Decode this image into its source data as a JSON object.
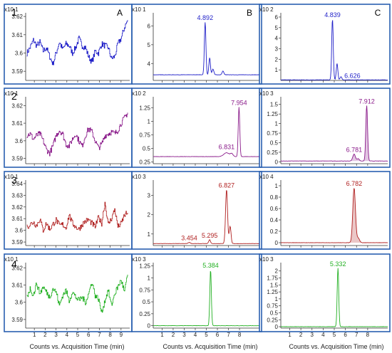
{
  "columns": {
    "A": {
      "label": "A",
      "xlabel": "Counts vs. Acquisition Time (min)",
      "xlim": [
        0.2,
        9.8
      ],
      "xticks": [
        "1",
        "2",
        "3",
        "4",
        "5",
        "6",
        "7",
        "8",
        "9"
      ]
    },
    "B": {
      "label": "B",
      "xlabel": "Counts vs. Acquisition Time (min)",
      "xlim": [
        0.2,
        9.8
      ],
      "xticks": [
        "1",
        "2",
        "3",
        "4",
        "5",
        "6",
        "7",
        "8"
      ]
    },
    "C": {
      "label": "C",
      "xlabel": "Counts vs. Acquisition Time (min)",
      "xlim": [
        0.2,
        9.8
      ],
      "xticks": [
        "1",
        "2",
        "3",
        "4",
        "5",
        "6",
        "7",
        "8"
      ]
    }
  },
  "rows": [
    {
      "label": "1",
      "color": "#1f1fc8"
    },
    {
      "label": "2",
      "color": "#8a1a8a"
    },
    {
      "label": "3",
      "color": "#b02020"
    },
    {
      "label": "4",
      "color": "#22b022"
    }
  ],
  "chart_data": [
    {
      "id": "A1",
      "type": "line",
      "exponent": "x10 1",
      "ylim": [
        3.585,
        3.622
      ],
      "yticks": [
        3.59,
        3.6,
        3.61,
        3.62
      ],
      "ytick_labels": [
        "3.59",
        "3.6",
        "3.61",
        "3.62"
      ],
      "series": [
        {
          "x": [
            0.3,
            0.6,
            0.9,
            1.2,
            1.5,
            1.8,
            2.1,
            2.4,
            2.7,
            3.0,
            3.3,
            3.6,
            3.9,
            4.2,
            4.5,
            4.8,
            5.1,
            5.4,
            5.7,
            6.0,
            6.3,
            6.6,
            6.9,
            7.2,
            7.5,
            7.8,
            8.1,
            8.4,
            8.7,
            9.0,
            9.3,
            9.6
          ],
          "y": [
            3.6,
            3.603,
            3.607,
            3.604,
            3.606,
            3.601,
            3.603,
            3.598,
            3.594,
            3.6,
            3.606,
            3.602,
            3.605,
            3.604,
            3.6,
            3.603,
            3.608,
            3.604,
            3.603,
            3.598,
            3.595,
            3.601,
            3.6,
            3.605,
            3.604,
            3.603,
            3.597,
            3.598,
            3.605,
            3.608,
            3.614,
            3.618
          ]
        }
      ]
    },
    {
      "id": "B1",
      "type": "line",
      "fill": false,
      "exponent": "x10 1",
      "ylim": [
        3.1,
        6.7
      ],
      "yticks": [
        4,
        5,
        6
      ],
      "ytick_labels": [
        "4",
        "5",
        "6"
      ],
      "baseline": 3.4,
      "peaks": [
        {
          "x": 4.892,
          "h": 6.2,
          "w": 0.07
        },
        {
          "x": 5.3,
          "h": 4.3,
          "w": 0.07
        },
        {
          "x": 5.6,
          "h": 3.7,
          "w": 0.08
        },
        {
          "x": 6.5,
          "h": 3.6,
          "w": 0.08
        }
      ],
      "annotations": [
        {
          "x": 4.892,
          "y": 6.2,
          "text": "4.892"
        }
      ]
    },
    {
      "id": "C1",
      "type": "line",
      "fill": false,
      "exponent": "x10 2",
      "ylim": [
        0,
        6.4
      ],
      "yticks": [
        1,
        2,
        3,
        4,
        5,
        6
      ],
      "ytick_labels": [
        "1",
        "2",
        "3",
        "4",
        "5",
        "6"
      ],
      "baseline": 0.05,
      "peaks": [
        {
          "x": 4.839,
          "h": 5.8,
          "w": 0.07
        },
        {
          "x": 5.25,
          "h": 1.6,
          "w": 0.07
        },
        {
          "x": 5.6,
          "h": 0.35,
          "w": 0.08
        }
      ],
      "annotations": [
        {
          "x": 4.839,
          "y": 5.8,
          "text": "4.839"
        },
        {
          "x": 6.626,
          "y": 0.05,
          "text": "6.626"
        }
      ]
    },
    {
      "id": "A2",
      "type": "line",
      "exponent": "x10 1",
      "ylim": [
        3.587,
        3.625
      ],
      "yticks": [
        3.59,
        3.6,
        3.61,
        3.62
      ],
      "ytick_labels": [
        "3.59",
        "3.6",
        "3.61",
        "3.62"
      ],
      "series": [
        {
          "x": [
            0.3,
            0.6,
            0.9,
            1.2,
            1.5,
            1.8,
            2.1,
            2.4,
            2.7,
            3.0,
            3.3,
            3.6,
            3.9,
            4.2,
            4.5,
            4.8,
            5.1,
            5.4,
            5.7,
            6.0,
            6.3,
            6.6,
            6.9,
            7.2,
            7.5,
            7.8,
            8.1,
            8.4,
            8.7,
            9.0,
            9.3,
            9.6
          ],
          "y": [
            3.603,
            3.604,
            3.601,
            3.603,
            3.604,
            3.6,
            3.595,
            3.593,
            3.597,
            3.603,
            3.606,
            3.604,
            3.598,
            3.597,
            3.601,
            3.604,
            3.6,
            3.597,
            3.603,
            3.607,
            3.605,
            3.6,
            3.596,
            3.598,
            3.603,
            3.604,
            3.605,
            3.604,
            3.606,
            3.61,
            3.613,
            3.616
          ]
        }
      ]
    },
    {
      "id": "B2",
      "type": "line",
      "fill": false,
      "exponent": "x10 2",
      "ylim": [
        0.22,
        1.45
      ],
      "yticks": [
        0.25,
        0.5,
        0.75,
        1,
        1.25
      ],
      "ytick_labels": [
        "0.25",
        "0.5",
        "0.75",
        "1",
        "1.25"
      ],
      "baseline": 0.35,
      "peaks": [
        {
          "x": 6.831,
          "h": 0.42,
          "w": 0.25
        },
        {
          "x": 7.3,
          "h": 0.4,
          "w": 0.12
        },
        {
          "x": 7.954,
          "h": 1.26,
          "w": 0.07
        }
      ],
      "annotations": [
        {
          "x": 6.831,
          "y": 0.45,
          "text": "6.831"
        },
        {
          "x": 7.954,
          "y": 1.26,
          "text": "7.954"
        }
      ]
    },
    {
      "id": "C2",
      "type": "line",
      "fill": true,
      "exponent": "x10 3",
      "ylim": [
        -0.05,
        1.7
      ],
      "yticks": [
        0,
        0.25,
        0.5,
        0.75,
        1,
        1.25,
        1.5
      ],
      "ytick_labels": [
        "0",
        "0.25",
        "0.5",
        "0.75",
        "1",
        "1.25",
        "1.5"
      ],
      "baseline": 0.02,
      "peaks": [
        {
          "x": 6.781,
          "h": 0.2,
          "w": 0.12
        },
        {
          "x": 7.15,
          "h": 0.08,
          "w": 0.1
        },
        {
          "x": 7.912,
          "h": 1.47,
          "w": 0.08
        }
      ],
      "annotations": [
        {
          "x": 6.781,
          "y": 0.2,
          "text": "6.781"
        },
        {
          "x": 7.912,
          "y": 1.47,
          "text": "7.912"
        }
      ]
    },
    {
      "id": "A3",
      "type": "line",
      "exponent": "x10 1",
      "ylim": [
        3.587,
        3.643
      ],
      "yticks": [
        3.59,
        3.6,
        3.61,
        3.62,
        3.63,
        3.64
      ],
      "ytick_labels": [
        "3.59",
        "3.6",
        "3.61",
        "3.62",
        "3.63",
        "3.64"
      ],
      "series": [
        {
          "x": [
            0.3,
            0.6,
            0.9,
            1.2,
            1.5,
            1.8,
            2.1,
            2.4,
            2.7,
            3.0,
            3.3,
            3.6,
            3.9,
            4.2,
            4.5,
            4.8,
            5.1,
            5.4,
            5.7,
            6.0,
            6.3,
            6.6,
            6.9,
            7.2,
            7.5,
            7.8,
            8.1,
            8.4,
            8.7,
            9.0,
            9.3,
            9.6
          ],
          "y": [
            3.603,
            3.605,
            3.607,
            3.604,
            3.61,
            3.6,
            3.606,
            3.601,
            3.605,
            3.609,
            3.604,
            3.605,
            3.602,
            3.613,
            3.606,
            3.603,
            3.601,
            3.605,
            3.608,
            3.609,
            3.606,
            3.603,
            3.611,
            3.606,
            3.624,
            3.605,
            3.61,
            3.618,
            3.603,
            3.606,
            3.613,
            3.615
          ]
        }
      ]
    },
    {
      "id": "B3",
      "type": "line",
      "fill": false,
      "exponent": "x10 3",
      "ylim": [
        0.4,
        3.8
      ],
      "yticks": [
        1,
        2,
        3
      ],
      "ytick_labels": [
        "1",
        "2",
        "3"
      ],
      "baseline": 0.5,
      "peaks": [
        {
          "x": 3.454,
          "h": 0.56,
          "w": 0.1
        },
        {
          "x": 5.295,
          "h": 0.7,
          "w": 0.08
        },
        {
          "x": 6.827,
          "h": 3.3,
          "w": 0.09
        },
        {
          "x": 7.15,
          "h": 1.4,
          "w": 0.08
        }
      ],
      "annotations": [
        {
          "x": 3.454,
          "y": 0.56,
          "text": "3.454"
        },
        {
          "x": 5.295,
          "y": 0.7,
          "text": "5.295"
        },
        {
          "x": 6.827,
          "y": 3.3,
          "text": "6.827"
        }
      ]
    },
    {
      "id": "C3",
      "type": "line",
      "fill": true,
      "exponent": "x10 4",
      "ylim": [
        -0.05,
        1.1
      ],
      "yticks": [
        0,
        0.2,
        0.4,
        0.6,
        0.8,
        1
      ],
      "ytick_labels": [
        "0",
        "0.2",
        "0.4",
        "0.6",
        "0.8",
        "1"
      ],
      "baseline": 0.0,
      "peaks": [
        {
          "x": 6.782,
          "h": 0.96,
          "w": 0.12
        },
        {
          "x": 7.15,
          "h": 0.08,
          "w": 0.12
        }
      ],
      "annotations": [
        {
          "x": 6.782,
          "y": 0.96,
          "text": "6.782"
        }
      ]
    },
    {
      "id": "A4",
      "type": "line",
      "exponent": "x10 1",
      "ylim": [
        3.585,
        3.623
      ],
      "yticks": [
        3.59,
        3.6,
        3.61,
        3.62
      ],
      "ytick_labels": [
        "3.59",
        "3.6",
        "3.61",
        "3.62"
      ],
      "series": [
        {
          "x": [
            0.3,
            0.6,
            0.9,
            1.2,
            1.5,
            1.8,
            2.1,
            2.4,
            2.7,
            3.0,
            3.3,
            3.6,
            3.9,
            4.2,
            4.5,
            4.8,
            5.1,
            5.4,
            5.7,
            6.0,
            6.3,
            6.6,
            6.9,
            7.2,
            7.5,
            7.8,
            8.1,
            8.4,
            8.7,
            9.0,
            9.3,
            9.6
          ],
          "y": [
            3.603,
            3.608,
            3.604,
            3.611,
            3.605,
            3.609,
            3.606,
            3.603,
            3.608,
            3.606,
            3.598,
            3.604,
            3.607,
            3.601,
            3.606,
            3.603,
            3.601,
            3.603,
            3.6,
            3.605,
            3.612,
            3.604,
            3.602,
            3.594,
            3.601,
            3.607,
            3.598,
            3.605,
            3.609,
            3.613,
            3.606,
            3.616
          ]
        }
      ]
    },
    {
      "id": "B4",
      "type": "line",
      "fill": false,
      "exponent": "x10 3",
      "ylim": [
        -0.05,
        1.32
      ],
      "yticks": [
        0,
        0.25,
        0.5,
        0.75,
        1,
        1.25
      ],
      "ytick_labels": [
        "0",
        "0.25",
        "0.5",
        "0.75",
        "1",
        "1.25"
      ],
      "baseline": 0.0,
      "peaks": [
        {
          "x": 5.384,
          "h": 1.17,
          "w": 0.07
        }
      ],
      "annotations": [
        {
          "x": 5.384,
          "y": 1.17,
          "text": "5.384"
        }
      ]
    },
    {
      "id": "C4",
      "type": "line",
      "fill": false,
      "exponent": "x10 3",
      "ylim": [
        -0.05,
        2.3
      ],
      "yticks": [
        0,
        0.25,
        0.5,
        0.75,
        1,
        1.25,
        1.5,
        1.75,
        2
      ],
      "ytick_labels": [
        "0",
        "0.25",
        "0.5",
        "0.75",
        "1",
        "1.25",
        "1.5",
        "1.75",
        "2"
      ],
      "baseline": 0.0,
      "peaks": [
        {
          "x": 5.332,
          "h": 2.1,
          "w": 0.07
        }
      ],
      "annotations": [
        {
          "x": 5.332,
          "y": 2.1,
          "text": "5.332"
        }
      ]
    }
  ]
}
